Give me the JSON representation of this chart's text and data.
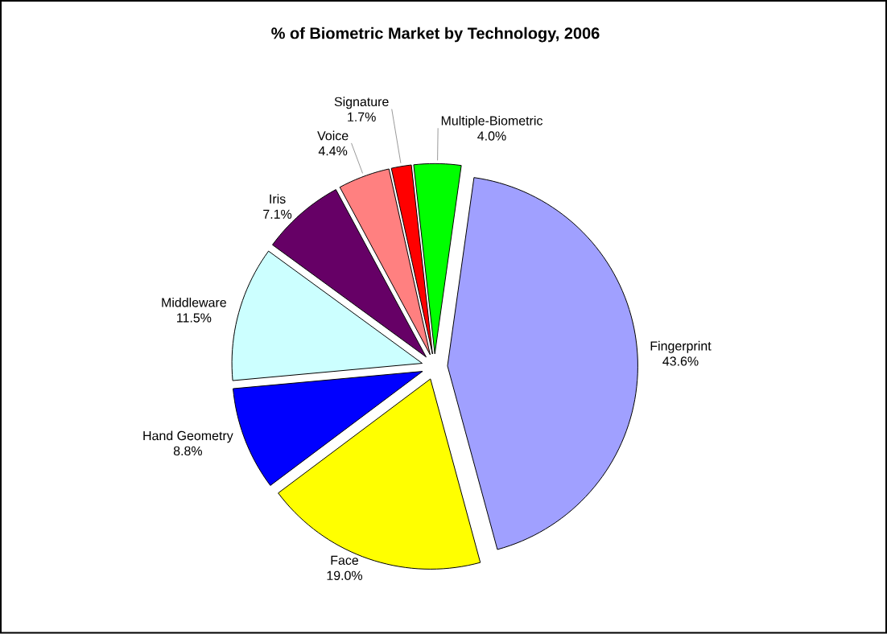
{
  "chart_data": {
    "type": "pie",
    "title": "% of Biometric Market by Technology, 2006",
    "categories": [
      "Fingerprint",
      "Face",
      "Hand Geometry",
      "Middleware",
      "Iris",
      "Voice",
      "Signature",
      "Multiple-Biometric"
    ],
    "values": [
      43.6,
      19.0,
      8.8,
      11.5,
      7.1,
      4.4,
      1.7,
      4.0
    ],
    "colors": [
      "#a0a0ff",
      "#ffff00",
      "#0000ff",
      "#ccffff",
      "#660066",
      "#ff8080",
      "#ff0000",
      "#00ff00"
    ],
    "value_labels": [
      "43.6%",
      "19.0%",
      "8.8%",
      "11.5%",
      "7.1%",
      "4.4%",
      "1.7%",
      "4.0%"
    ]
  }
}
